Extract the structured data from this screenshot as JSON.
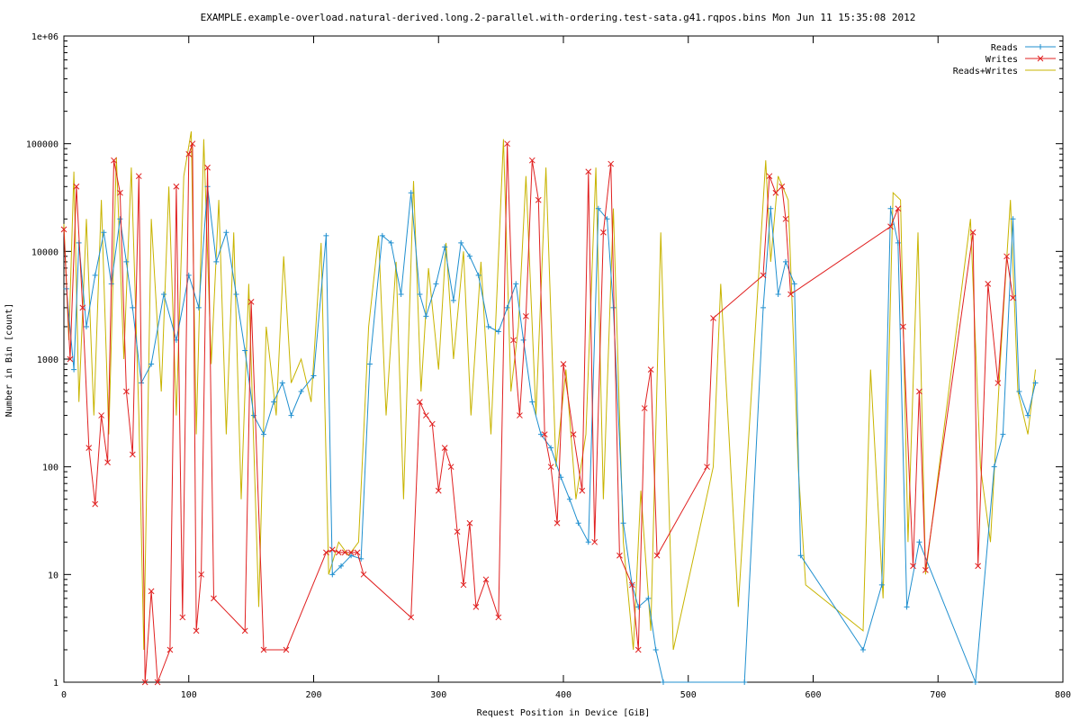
{
  "chart_data": {
    "type": "line",
    "title": "EXAMPLE.example-overload.natural-derived.long.2-parallel.with-ordering.test-sata.g41.rqpos.bins Mon Jun 11 15:35:08 2012",
    "xlabel": "Request Position in Device [GiB]",
    "ylabel": "Number in Bin [count]",
    "xlim": [
      0,
      800
    ],
    "ylim": [
      1,
      1000000
    ],
    "yscale": "log",
    "x_ticks": [
      "0",
      "100",
      "200",
      "300",
      "400",
      "500",
      "600",
      "700",
      "800"
    ],
    "y_ticks": [
      "1",
      "10",
      "100",
      "1000",
      "10000",
      "100000",
      "1e+06"
    ],
    "grid": false,
    "legend_position": "top-right",
    "series": [
      {
        "name": "Reads",
        "color": "#1f8fcf",
        "marker": "plus",
        "points": [
          [
            2,
            4500
          ],
          [
            8,
            800
          ],
          [
            12,
            12000
          ],
          [
            18,
            2000
          ],
          [
            25,
            6000
          ],
          [
            32,
            15000
          ],
          [
            38,
            5000
          ],
          [
            45,
            20000
          ],
          [
            50,
            8000
          ],
          [
            55,
            3000
          ],
          [
            62,
            600
          ],
          [
            70,
            900
          ],
          [
            80,
            4000
          ],
          [
            90,
            1500
          ],
          [
            100,
            6000
          ],
          [
            108,
            3000
          ],
          [
            115,
            40000
          ],
          [
            122,
            8000
          ],
          [
            130,
            15000
          ],
          [
            138,
            4000
          ],
          [
            145,
            1200
          ],
          [
            152,
            300
          ],
          [
            160,
            200
          ],
          [
            168,
            400
          ],
          [
            175,
            600
          ],
          [
            182,
            300
          ],
          [
            190,
            500
          ],
          [
            200,
            700
          ],
          [
            210,
            14000
          ],
          [
            215,
            10
          ],
          [
            222,
            12
          ],
          [
            230,
            15
          ],
          [
            238,
            14
          ],
          [
            245,
            900
          ],
          [
            255,
            14000
          ],
          [
            262,
            12000
          ],
          [
            270,
            4000
          ],
          [
            278,
            35000
          ],
          [
            285,
            4000
          ],
          [
            290,
            2500
          ],
          [
            298,
            5000
          ],
          [
            305,
            11000
          ],
          [
            312,
            3500
          ],
          [
            318,
            12000
          ],
          [
            325,
            9000
          ],
          [
            332,
            6000
          ],
          [
            340,
            2000
          ],
          [
            348,
            1800
          ],
          [
            355,
            3000
          ],
          [
            362,
            5000
          ],
          [
            368,
            1500
          ],
          [
            375,
            400
          ],
          [
            382,
            200
          ],
          [
            390,
            150
          ],
          [
            398,
            80
          ],
          [
            405,
            50
          ],
          [
            412,
            30
          ],
          [
            420,
            20
          ],
          [
            428,
            25000
          ],
          [
            435,
            20000
          ],
          [
            440,
            3000
          ],
          [
            448,
            30
          ],
          [
            455,
            8
          ],
          [
            460,
            5
          ],
          [
            468,
            6
          ],
          [
            474,
            2
          ],
          [
            480,
            1
          ],
          [
            545,
            1
          ],
          [
            560,
            3000
          ],
          [
            566,
            25000
          ],
          [
            572,
            4000
          ],
          [
            578,
            8000
          ],
          [
            585,
            5000
          ],
          [
            590,
            15
          ],
          [
            640,
            2
          ],
          [
            655,
            8
          ],
          [
            662,
            25000
          ],
          [
            668,
            12000
          ],
          [
            675,
            5
          ],
          [
            685,
            20
          ],
          [
            730,
            1
          ],
          [
            745,
            100
          ],
          [
            752,
            200
          ],
          [
            760,
            20000
          ],
          [
            765,
            500
          ],
          [
            772,
            300
          ],
          [
            778,
            600
          ]
        ]
      },
      {
        "name": "Writes",
        "color": "#e02020",
        "marker": "cross",
        "points": [
          [
            0,
            16000
          ],
          [
            5,
            1000
          ],
          [
            10,
            40000
          ],
          [
            15,
            3000
          ],
          [
            20,
            150
          ],
          [
            25,
            45
          ],
          [
            30,
            300
          ],
          [
            35,
            110
          ],
          [
            40,
            70000
          ],
          [
            45,
            35000
          ],
          [
            50,
            500
          ],
          [
            55,
            130
          ],
          [
            60,
            50000
          ],
          [
            65,
            1
          ],
          [
            70,
            7
          ],
          [
            75,
            1
          ],
          [
            85,
            2
          ],
          [
            90,
            40000
          ],
          [
            95,
            4
          ],
          [
            100,
            80000
          ],
          [
            103,
            100000
          ],
          [
            106,
            3
          ],
          [
            110,
            10
          ],
          [
            115,
            60000
          ],
          [
            120,
            6
          ],
          [
            145,
            3
          ],
          [
            150,
            3400
          ],
          [
            160,
            2
          ],
          [
            178,
            2
          ],
          [
            210,
            16
          ],
          [
            215,
            17
          ],
          [
            220,
            16
          ],
          [
            225,
            16
          ],
          [
            230,
            16
          ],
          [
            235,
            16
          ],
          [
            240,
            10
          ],
          [
            278,
            4
          ],
          [
            285,
            400
          ],
          [
            290,
            300
          ],
          [
            295,
            250
          ],
          [
            300,
            60
          ],
          [
            305,
            150
          ],
          [
            310,
            100
          ],
          [
            315,
            25
          ],
          [
            320,
            8
          ],
          [
            325,
            30
          ],
          [
            330,
            5
          ],
          [
            338,
            9
          ],
          [
            348,
            4
          ],
          [
            355,
            100000
          ],
          [
            360,
            1500
          ],
          [
            365,
            300
          ],
          [
            370,
            2500
          ],
          [
            375,
            70000
          ],
          [
            380,
            30000
          ],
          [
            385,
            200
          ],
          [
            390,
            100
          ],
          [
            395,
            30
          ],
          [
            400,
            900
          ],
          [
            408,
            200
          ],
          [
            415,
            60
          ],
          [
            420,
            55000
          ],
          [
            425,
            20
          ],
          [
            432,
            15000
          ],
          [
            438,
            65000
          ],
          [
            445,
            15
          ],
          [
            455,
            8
          ],
          [
            460,
            2
          ],
          [
            465,
            350
          ],
          [
            470,
            800
          ],
          [
            475,
            15
          ],
          [
            515,
            100
          ],
          [
            520,
            2400
          ],
          [
            560,
            6000
          ],
          [
            565,
            50000
          ],
          [
            570,
            35000
          ],
          [
            575,
            40000
          ],
          [
            578,
            20000
          ],
          [
            582,
            4000
          ],
          [
            662,
            17000
          ],
          [
            668,
            25000
          ],
          [
            672,
            2000
          ],
          [
            680,
            12
          ],
          [
            685,
            500
          ],
          [
            690,
            11
          ],
          [
            728,
            15000
          ],
          [
            732,
            12
          ],
          [
            740,
            5000
          ],
          [
            748,
            600
          ],
          [
            755,
            9000
          ],
          [
            760,
            3700
          ]
        ]
      },
      {
        "name": "Reads+Writes",
        "color": "#c8b400",
        "marker": "line",
        "points": [
          [
            0,
            18000
          ],
          [
            4,
            1500
          ],
          [
            8,
            55000
          ],
          [
            12,
            400
          ],
          [
            18,
            20000
          ],
          [
            24,
            300
          ],
          [
            30,
            30000
          ],
          [
            36,
            200
          ],
          [
            42,
            75000
          ],
          [
            48,
            1000
          ],
          [
            54,
            60000
          ],
          [
            60,
            300
          ],
          [
            64,
            2
          ],
          [
            70,
            20000
          ],
          [
            78,
            500
          ],
          [
            84,
            40000
          ],
          [
            90,
            300
          ],
          [
            96,
            50000
          ],
          [
            102,
            130000
          ],
          [
            106,
            200
          ],
          [
            112,
            110000
          ],
          [
            118,
            900
          ],
          [
            124,
            30000
          ],
          [
            130,
            200
          ],
          [
            136,
            15000
          ],
          [
            142,
            50
          ],
          [
            148,
            5000
          ],
          [
            156,
            5
          ],
          [
            162,
            2000
          ],
          [
            170,
            300
          ],
          [
            176,
            9000
          ],
          [
            182,
            600
          ],
          [
            190,
            1000
          ],
          [
            198,
            400
          ],
          [
            206,
            12000
          ],
          [
            212,
            10
          ],
          [
            220,
            20
          ],
          [
            228,
            15
          ],
          [
            236,
            20
          ],
          [
            244,
            2000
          ],
          [
            252,
            14000
          ],
          [
            258,
            300
          ],
          [
            266,
            8000
          ],
          [
            272,
            50
          ],
          [
            280,
            45000
          ],
          [
            286,
            500
          ],
          [
            292,
            7000
          ],
          [
            300,
            800
          ],
          [
            306,
            12000
          ],
          [
            312,
            1000
          ],
          [
            320,
            10000
          ],
          [
            326,
            300
          ],
          [
            334,
            8000
          ],
          [
            342,
            200
          ],
          [
            352,
            110000
          ],
          [
            358,
            500
          ],
          [
            364,
            2000
          ],
          [
            370,
            50000
          ],
          [
            378,
            300
          ],
          [
            386,
            60000
          ],
          [
            394,
            100
          ],
          [
            402,
            800
          ],
          [
            410,
            50
          ],
          [
            418,
            200
          ],
          [
            426,
            60000
          ],
          [
            432,
            50
          ],
          [
            440,
            25000
          ],
          [
            448,
            20
          ],
          [
            456,
            2
          ],
          [
            462,
            60
          ],
          [
            470,
            3
          ],
          [
            478,
            15000
          ],
          [
            488,
            2
          ],
          [
            520,
            100
          ],
          [
            526,
            5000
          ],
          [
            540,
            5
          ],
          [
            562,
            70000
          ],
          [
            566,
            8000
          ],
          [
            572,
            50000
          ],
          [
            580,
            30000
          ],
          [
            588,
            100
          ],
          [
            594,
            8
          ],
          [
            640,
            3
          ],
          [
            646,
            800
          ],
          [
            656,
            6
          ],
          [
            664,
            35000
          ],
          [
            670,
            30000
          ],
          [
            676,
            20
          ],
          [
            684,
            15000
          ],
          [
            690,
            10
          ],
          [
            726,
            20000
          ],
          [
            734,
            100
          ],
          [
            742,
            20
          ],
          [
            750,
            1000
          ],
          [
            758,
            30000
          ],
          [
            764,
            500
          ],
          [
            772,
            200
          ],
          [
            778,
            800
          ]
        ]
      }
    ]
  }
}
